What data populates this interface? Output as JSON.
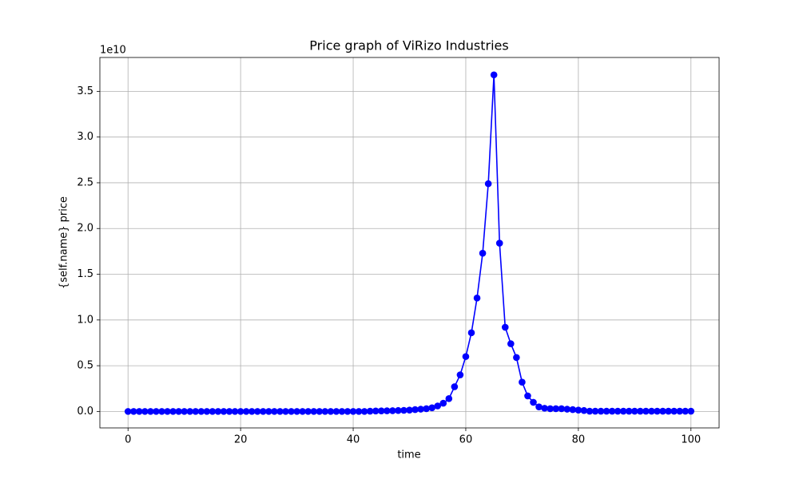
{
  "chart_data": {
    "type": "line",
    "title": "Price graph of ViRizo Industries",
    "x_label": "time",
    "y_label": "{self.name} price",
    "y_offset_label": "1e10",
    "x": [
      0,
      1,
      2,
      3,
      4,
      5,
      6,
      7,
      8,
      9,
      10,
      11,
      12,
      13,
      14,
      15,
      16,
      17,
      18,
      19,
      20,
      21,
      22,
      23,
      24,
      25,
      26,
      27,
      28,
      29,
      30,
      31,
      32,
      33,
      34,
      35,
      36,
      37,
      38,
      39,
      40,
      41,
      42,
      43,
      44,
      45,
      46,
      47,
      48,
      49,
      50,
      51,
      52,
      53,
      54,
      55,
      56,
      57,
      58,
      59,
      60,
      61,
      62,
      63,
      64,
      65,
      66,
      67,
      68,
      69,
      70,
      71,
      72,
      73,
      74,
      75,
      76,
      77,
      78,
      79,
      80,
      81,
      82,
      83,
      84,
      85,
      86,
      87,
      88,
      89,
      90,
      91,
      92,
      93,
      94,
      95,
      96,
      97,
      98,
      99,
      100
    ],
    "series": [
      {
        "color": "#0000ff",
        "values": [
          0,
          0,
          0,
          0,
          0,
          0,
          0,
          0,
          0,
          0,
          0,
          0,
          0,
          0,
          0,
          0,
          0,
          0,
          0,
          0,
          0,
          0,
          0,
          0,
          0,
          0,
          0,
          0,
          0,
          0,
          0,
          0,
          0,
          0,
          0,
          0,
          0,
          0,
          0,
          0,
          0,
          0,
          0,
          0.003,
          0.005,
          0.006,
          0.007,
          0.008,
          0.01,
          0.012,
          0.015,
          0.02,
          0.025,
          0.03,
          0.04,
          0.06,
          0.09,
          0.14,
          0.27,
          0.4,
          0.6,
          0.86,
          1.24,
          1.73,
          2.49,
          3.68,
          1.84,
          0.92,
          0.74,
          0.59,
          0.32,
          0.17,
          0.1,
          0.05,
          0.035,
          0.03,
          0.03,
          0.03,
          0.025,
          0.02,
          0.015,
          0.01,
          0.003,
          0.003,
          0.003,
          0.003,
          0.003,
          0.003,
          0.003,
          0.003,
          0.003,
          0.003,
          0.003,
          0.003,
          0.003,
          0.003,
          0.003,
          0.003,
          0.003,
          0.003,
          0.003
        ]
      }
    ],
    "xlim": [
      -5,
      105
    ],
    "xticks": [
      0,
      20,
      40,
      60,
      80,
      100
    ],
    "ylim": [
      -0.18,
      3.87
    ],
    "yticks": [
      {
        "value": 0,
        "label": "0.0"
      },
      0.5,
      {
        "value": 1,
        "label": "1.0"
      },
      1.5,
      {
        "value": 2,
        "label": "2.0"
      },
      2.5,
      {
        "value": 3,
        "label": "3.0"
      },
      3.5
    ],
    "grid": true
  }
}
